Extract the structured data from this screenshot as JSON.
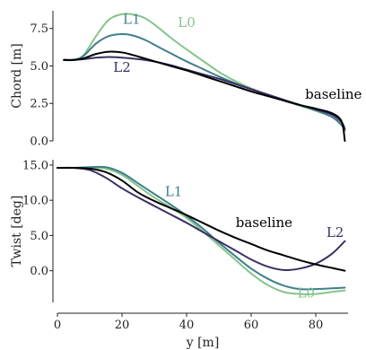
{
  "chart_data": [
    {
      "type": "line",
      "ylabel": "Chord [m]",
      "xlabel": "",
      "xlim": [
        0,
        90
      ],
      "ylim": [
        0,
        8.5
      ],
      "yticks": [
        "0.0",
        "2.5",
        "5.0",
        "7.5"
      ],
      "yticks_values": [
        0,
        2.5,
        5.0,
        7.5
      ],
      "xticks": [],
      "grid": false,
      "series": [
        {
          "name": "L0",
          "color": "#86c48b",
          "x": [
            2,
            5,
            8,
            12,
            16,
            20,
            23,
            27,
            31,
            35,
            40,
            45,
            50,
            55,
            60,
            65,
            70,
            75,
            80,
            85,
            88,
            89
          ],
          "y": [
            5.4,
            5.4,
            5.7,
            7.0,
            8.1,
            8.45,
            8.45,
            8.2,
            7.6,
            6.9,
            6.1,
            5.35,
            4.6,
            4.0,
            3.5,
            3.1,
            2.7,
            2.35,
            2.0,
            1.6,
            1.1,
            0.7
          ]
        },
        {
          "name": "L1",
          "color": "#3f7f8a",
          "x": [
            2,
            5,
            8,
            12,
            16,
            20,
            23,
            27,
            31,
            35,
            40,
            45,
            50,
            55,
            60,
            65,
            70,
            75,
            80,
            85,
            88,
            89
          ],
          "y": [
            5.4,
            5.4,
            5.65,
            6.5,
            7.0,
            7.12,
            7.05,
            6.75,
            6.3,
            5.85,
            5.3,
            4.8,
            4.3,
            3.85,
            3.45,
            3.05,
            2.7,
            2.4,
            2.05,
            1.6,
            1.05,
            0.7
          ]
        },
        {
          "name": "L2",
          "color": "#3b2e63",
          "x": [
            2,
            5,
            8,
            12,
            16,
            20,
            23,
            27,
            31,
            35,
            40,
            45,
            50,
            55,
            60,
            65,
            70,
            75,
            80,
            85,
            88,
            89
          ],
          "y": [
            5.4,
            5.4,
            5.45,
            5.55,
            5.6,
            5.55,
            5.5,
            5.4,
            5.25,
            5.05,
            4.75,
            4.45,
            4.15,
            3.8,
            3.45,
            3.1,
            2.75,
            2.4,
            2.1,
            1.75,
            1.25,
            0.8
          ]
        },
        {
          "name": "baseline",
          "color": "#000000",
          "x": [
            2,
            5,
            8,
            12,
            16,
            20,
            23,
            27,
            31,
            35,
            40,
            45,
            50,
            55,
            60,
            65,
            70,
            75,
            80,
            85,
            88,
            89
          ],
          "y": [
            5.4,
            5.4,
            5.5,
            5.8,
            5.95,
            5.9,
            5.75,
            5.5,
            5.25,
            5.0,
            4.7,
            4.35,
            4.0,
            3.65,
            3.3,
            3.0,
            2.7,
            2.4,
            2.15,
            1.85,
            1.3,
            0.0
          ]
        }
      ],
      "annotations": [
        {
          "text": "L1",
          "x": 23,
          "y": 7.8,
          "series": 1
        },
        {
          "text": "L0",
          "x": 40,
          "y": 7.6,
          "series": 0
        },
        {
          "text": "L2",
          "x": 20,
          "y": 4.6,
          "series": 2
        },
        {
          "text": "baseline",
          "x": 85.5,
          "y": 2.8,
          "series": 3
        }
      ]
    },
    {
      "type": "line",
      "ylabel": "Twist [deg]",
      "xlabel": "y [m]",
      "xlim": [
        0,
        90
      ],
      "ylim": [
        -4.5,
        15.5
      ],
      "yticks": [
        "0.0",
        "5.0",
        "10.0",
        "15.0"
      ],
      "yticks_values": [
        0,
        5,
        10,
        15
      ],
      "xticks": [
        "0",
        "20",
        "40",
        "60",
        "80"
      ],
      "xticks_values": [
        0,
        20,
        40,
        60,
        80
      ],
      "grid": false,
      "series": [
        {
          "name": "L0",
          "color": "#86c48b",
          "x": [
            0,
            5,
            10,
            15,
            20,
            25,
            30,
            35,
            40,
            45,
            50,
            55,
            60,
            65,
            70,
            75,
            80,
            85,
            89
          ],
          "y": [
            14.6,
            14.6,
            14.6,
            14.5,
            13.6,
            12.0,
            10.4,
            9.0,
            7.5,
            5.6,
            3.6,
            1.6,
            -0.4,
            -2.0,
            -3.0,
            -3.3,
            -3.3,
            -3.0,
            -2.8
          ]
        },
        {
          "name": "L1",
          "color": "#3f7f8a",
          "x": [
            0,
            5,
            10,
            15,
            20,
            25,
            30,
            35,
            40,
            45,
            50,
            55,
            60,
            65,
            70,
            75,
            80,
            85,
            89
          ],
          "y": [
            14.6,
            14.6,
            14.7,
            14.7,
            13.9,
            12.4,
            10.9,
            9.4,
            7.8,
            6.0,
            4.0,
            2.1,
            0.3,
            -1.1,
            -2.1,
            -2.6,
            -2.6,
            -2.5,
            -2.4
          ]
        },
        {
          "name": "L2",
          "color": "#3b2e63",
          "x": [
            0,
            5,
            10,
            15,
            20,
            25,
            30,
            35,
            40,
            45,
            50,
            55,
            60,
            65,
            70,
            75,
            80,
            85,
            89
          ],
          "y": [
            14.6,
            14.6,
            14.3,
            13.2,
            11.7,
            10.4,
            9.2,
            8.0,
            6.8,
            5.5,
            4.2,
            2.9,
            1.6,
            0.6,
            0.1,
            0.3,
            1.0,
            2.4,
            4.2
          ]
        },
        {
          "name": "baseline",
          "color": "#000000",
          "x": [
            0,
            5,
            10,
            15,
            20,
            25,
            30,
            35,
            40,
            45,
            50,
            55,
            60,
            65,
            70,
            75,
            80,
            85,
            89
          ],
          "y": [
            14.6,
            14.6,
            14.5,
            14.0,
            12.8,
            11.1,
            9.9,
            8.9,
            7.9,
            6.8,
            5.7,
            4.7,
            3.8,
            2.9,
            2.2,
            1.5,
            0.9,
            0.4,
            0.0
          ]
        }
      ],
      "annotations": [
        {
          "text": "L1",
          "x": 36,
          "y": 10.6,
          "series": 1
        },
        {
          "text": "baseline",
          "x": 64,
          "y": 6.2,
          "series": 3
        },
        {
          "text": "L2",
          "x": 86,
          "y": 4.8,
          "series": 2
        },
        {
          "text": "L0",
          "x": 77,
          "y": -3.8,
          "series": 0
        }
      ]
    }
  ]
}
